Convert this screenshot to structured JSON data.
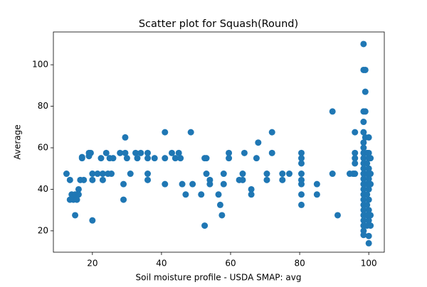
{
  "chart_data": {
    "type": "scatter",
    "title": "Scatter plot for Squash(Round)",
    "x_label": "Soil moisture profile - USDA SMAP: avg",
    "y_label": "Average",
    "color": "#1f77b4",
    "grid": false,
    "xlim": [
      8.7,
      104.5
    ],
    "ylim": [
      9.7,
      115.8
    ],
    "xticks": [
      20,
      40,
      60,
      80,
      100
    ],
    "yticks": [
      20,
      40,
      60,
      80,
      100
    ],
    "x": [
      12.5,
      13.5,
      13.5,
      14,
      14.5,
      15,
      15,
      15.5,
      16,
      16,
      16.5,
      17,
      17,
      17.5,
      19,
      19.5,
      19,
      20,
      20,
      20,
      21.5,
      22.5,
      23,
      23,
      24,
      24.5,
      25,
      25.5,
      26,
      28,
      29,
      29,
      29.5,
      29.5,
      30,
      31,
      32.5,
      33,
      34,
      36,
      36,
      36,
      36,
      38,
      41,
      41,
      41,
      43,
      44,
      45,
      45.5,
      46,
      47,
      48.5,
      49,
      51.5,
      52.5,
      52.5,
      53,
      53,
      54,
      54,
      56.5,
      57,
      57.5,
      58,
      58,
      59.5,
      59.5,
      62.5,
      63.5,
      63.5,
      64,
      66,
      66,
      67.5,
      68,
      70.5,
      70.5,
      72,
      72,
      75,
      75,
      77,
      80.5,
      80.5,
      80.5,
      80.5,
      80.5,
      80.5,
      80.5,
      80.5,
      85,
      85,
      89.5,
      89.5,
      91,
      94.5,
      95.5,
      96,
      96,
      96,
      96,
      96,
      98.5,
      98.5,
      99,
      99,
      98.5,
      99,
      98.5,
      98.5,
      99,
      100,
      98.5,
      98.5,
      98.5,
      98.5,
      98.5,
      98.5,
      98.5,
      98.5,
      98.5,
      98.5,
      98.5,
      98.5,
      98.5,
      98.5,
      98.5,
      98.5,
      98.5,
      98.5,
      98.5,
      99.5,
      99.5,
      99.5,
      99.5,
      99.5,
      99.5,
      99.5,
      99.5,
      100,
      100,
      100,
      100,
      100,
      100,
      100,
      100,
      100,
      100,
      100.5,
      100.5,
      100.5,
      100.5,
      100.5
    ],
    "y": [
      47.5,
      44.5,
      35,
      37.5,
      35,
      27.5,
      37.5,
      35,
      40,
      37.5,
      44.5,
      55,
      55.5,
      44.5,
      57.5,
      57.5,
      56,
      25,
      47.5,
      44.5,
      47.5,
      55,
      47.5,
      44.5,
      57.5,
      47.5,
      55,
      47.5,
      55,
      57.5,
      42.5,
      35,
      65,
      57.5,
      55,
      47.5,
      57.5,
      55,
      57.5,
      47.5,
      44.5,
      55,
      57.5,
      55,
      67.5,
      42.5,
      55,
      57.5,
      55,
      57.5,
      55,
      42.5,
      37.5,
      67.5,
      42.5,
      37.5,
      22.5,
      55,
      47.5,
      55,
      42.5,
      44.5,
      37.5,
      32.5,
      27.5,
      42.5,
      47.5,
      55,
      57.5,
      44.5,
      47.5,
      44.5,
      57.5,
      40,
      37.5,
      55,
      62.5,
      47.5,
      44.5,
      57.5,
      67.5,
      47.5,
      44.5,
      47.5,
      57.5,
      55,
      52.5,
      47.5,
      44.5,
      42.5,
      37.5,
      32.5,
      42.5,
      37.5,
      77.5,
      47.5,
      27.5,
      47.5,
      47.5,
      67.5,
      57.5,
      55,
      52.5,
      47.5,
      110,
      97.5,
      97.5,
      87,
      77.5,
      77.5,
      72.5,
      67.5,
      65,
      65,
      62.5,
      60,
      57.5,
      55,
      52.5,
      50,
      47.5,
      45,
      42.5,
      40,
      37.5,
      35,
      32.5,
      30,
      27.5,
      25,
      22.5,
      20,
      18,
      57.5,
      52.5,
      47.5,
      42.5,
      37.5,
      32.5,
      27.5,
      22.5,
      55,
      50,
      45,
      40,
      35,
      30,
      25,
      17.5,
      14,
      57.5,
      55,
      47.5,
      42.5,
      22.5,
      27.5
    ]
  }
}
